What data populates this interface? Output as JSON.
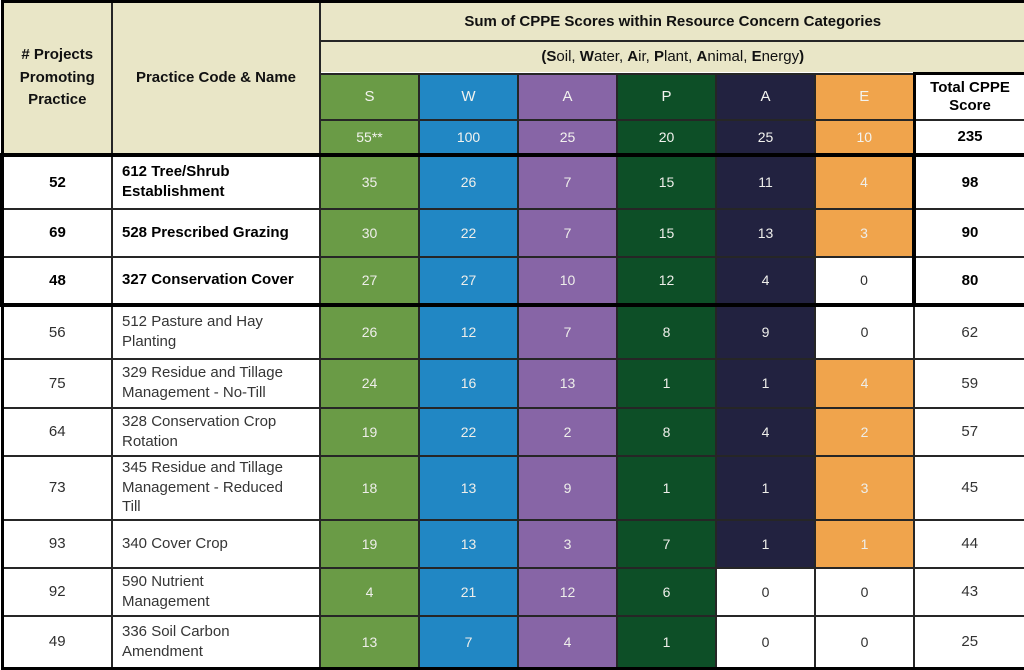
{
  "chart_data": {
    "type": "table",
    "title": "Sum of CPPE Scores within Resource Concern Categories",
    "subtitle": "(Soil, Water, Air, Plant, Animal, Energy)",
    "subtitle_segments": [
      {
        "t": "(S",
        "b": true
      },
      {
        "t": "oil, ",
        "b": false
      },
      {
        "t": "W",
        "b": true
      },
      {
        "t": "ater, ",
        "b": false
      },
      {
        "t": "A",
        "b": true
      },
      {
        "t": "ir, ",
        "b": false
      },
      {
        "t": "P",
        "b": true
      },
      {
        "t": "lant, ",
        "b": false
      },
      {
        "t": "A",
        "b": true
      },
      {
        "t": "nimal, ",
        "b": false
      },
      {
        "t": "E",
        "b": true
      },
      {
        "t": "nergy",
        "b": false
      },
      {
        "t": ")",
        "b": true
      }
    ],
    "corner_headers": {
      "projects_lines": [
        "# Projects",
        "Promoting",
        "Practice"
      ],
      "practice": "Practice Code & Name"
    },
    "score_columns": [
      {
        "letter": "S",
        "category": "Soil",
        "weight": "55**",
        "color": "#6a9b46"
      },
      {
        "letter": "W",
        "category": "Water",
        "weight": "100",
        "color": "#2187c4"
      },
      {
        "letter": "A",
        "category": "Air",
        "weight": "25",
        "color": "#8765a6"
      },
      {
        "letter": "P",
        "category": "Plant",
        "weight": "20",
        "color": "#0d4f27"
      },
      {
        "letter": "A",
        "category": "Animal",
        "weight": "25",
        "color": "#222240"
      },
      {
        "letter": "E",
        "category": "Energy",
        "weight": "10",
        "color": "#f0a44c"
      }
    ],
    "total_column": {
      "header_lines": [
        "Total CPPE",
        "Score"
      ],
      "weight": "235"
    },
    "rows": [
      {
        "projects": "52",
        "practice_lines": [
          "612 Tree/Shrub",
          "Establishment"
        ],
        "practice": "612 Tree/Shrub Establishment",
        "scores": [
          35,
          26,
          7,
          15,
          11,
          4
        ],
        "total": "98",
        "bold": true
      },
      {
        "projects": "69",
        "practice_lines": [
          "528 Prescribed Grazing"
        ],
        "practice": "528 Prescribed Grazing",
        "scores": [
          30,
          22,
          7,
          15,
          13,
          3
        ],
        "total": "90",
        "bold": true
      },
      {
        "projects": "48",
        "practice_lines": [
          "327 Conservation Cover"
        ],
        "practice": "327 Conservation Cover",
        "scores": [
          27,
          27,
          10,
          12,
          4,
          0
        ],
        "total": "80",
        "bold": true
      },
      {
        "projects": "56",
        "practice_lines": [
          "512 Pasture and Hay",
          "Planting"
        ],
        "practice": "512 Pasture and Hay Planting",
        "scores": [
          26,
          12,
          7,
          8,
          9,
          0
        ],
        "total": "62",
        "bold": false
      },
      {
        "projects": "75",
        "practice_lines": [
          "329 Residue and Tillage",
          "Management - No-Till"
        ],
        "practice": "329 Residue and Tillage Management - No-Till",
        "scores": [
          24,
          16,
          13,
          1,
          1,
          4
        ],
        "total": "59",
        "bold": false
      },
      {
        "projects": "64",
        "practice_lines": [
          "328 Conservation Crop",
          "Rotation"
        ],
        "practice": "328 Conservation Crop Rotation",
        "scores": [
          19,
          22,
          2,
          8,
          4,
          2
        ],
        "total": "57",
        "bold": false
      },
      {
        "projects": "73",
        "practice_lines": [
          "345 Residue and Tillage",
          "Management - Reduced",
          "Till"
        ],
        "practice": "345 Residue and Tillage Management - Reduced Till",
        "scores": [
          18,
          13,
          9,
          1,
          1,
          3
        ],
        "total": "45",
        "bold": false
      },
      {
        "projects": "93",
        "practice_lines": [
          "340 Cover Crop"
        ],
        "practice": "340 Cover Crop",
        "scores": [
          19,
          13,
          3,
          7,
          1,
          1
        ],
        "total": "44",
        "bold": false
      },
      {
        "projects": "92",
        "practice_lines": [
          "590 Nutrient",
          "Management"
        ],
        "practice": "590 Nutrient Management",
        "scores": [
          4,
          21,
          12,
          6,
          0,
          0
        ],
        "total": "43",
        "bold": false
      },
      {
        "projects": "49",
        "practice_lines": [
          "336 Soil Carbon",
          "Amendment"
        ],
        "practice": "336 Soil Carbon Amendment",
        "scores": [
          13,
          7,
          4,
          1,
          0,
          0
        ],
        "total": "25",
        "bold": false
      }
    ],
    "colors": {
      "header_beige": "#e9e6c7",
      "border_black": "#000000",
      "zero_cell_bg": "#ffffff",
      "score_text_light": "#eeeeea"
    },
    "layout": {
      "legend_position": "none",
      "grid": true
    }
  }
}
